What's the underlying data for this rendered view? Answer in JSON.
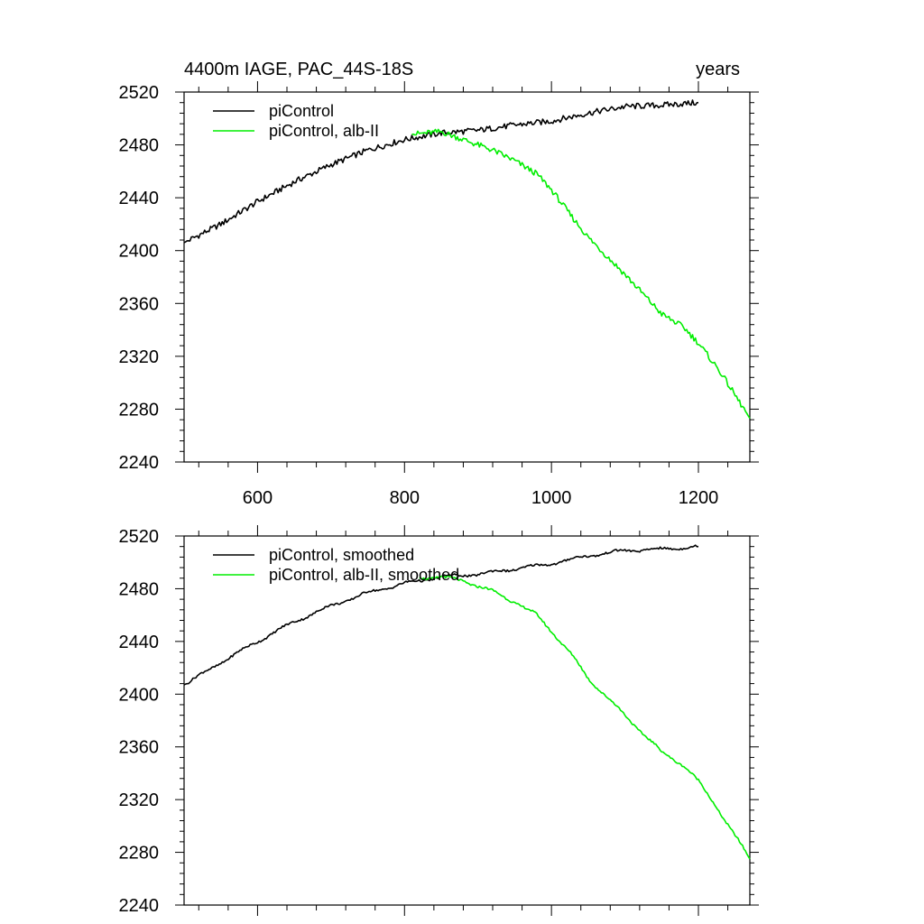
{
  "header": {
    "title_left": "4400m IAGE, PAC_44S-18S",
    "title_right": "years"
  },
  "chart_data": [
    {
      "type": "line",
      "title": "4400m IAGE, PAC_44S-18S",
      "xlabel": "years",
      "ylabel": "",
      "xlim": [
        500,
        1270
      ],
      "ylim": [
        2240,
        2520
      ],
      "xticks": [
        600,
        800,
        1000,
        1200
      ],
      "xtick_labels": [
        "600",
        "800",
        "1000",
        "1200"
      ],
      "yticks": [
        2240,
        2280,
        2320,
        2360,
        2400,
        2440,
        2480,
        2520
      ],
      "ytick_labels": [
        "2240",
        "2280",
        "2320",
        "2360",
        "2400",
        "2440",
        "2480",
        "2520"
      ],
      "legend": "top-left",
      "series": [
        {
          "name": "piControl",
          "color": "#000000",
          "x": [
            500,
            550,
            600,
            650,
            700,
            750,
            800,
            850,
            900,
            950,
            1000,
            1050,
            1100,
            1150,
            1200
          ],
          "y": [
            2406,
            2420,
            2437,
            2452,
            2465,
            2476,
            2484,
            2489,
            2491,
            2495,
            2498,
            2504,
            2509,
            2510,
            2512
          ]
        },
        {
          "name": "piControl, alb-II",
          "color": "#00ee00",
          "x": [
            810,
            850,
            880,
            920,
            950,
            980,
            1000,
            1030,
            1050,
            1100,
            1150,
            1180,
            1200,
            1230,
            1270
          ],
          "y": [
            2488,
            2490,
            2484,
            2476,
            2468,
            2458,
            2446,
            2424,
            2410,
            2382,
            2352,
            2342,
            2330,
            2308,
            2273
          ]
        }
      ]
    },
    {
      "type": "line",
      "title": "",
      "xlabel": "",
      "ylabel": "",
      "xlim": [
        500,
        1270
      ],
      "ylim": [
        2240,
        2520
      ],
      "xticks": [
        600,
        800,
        1000,
        1200
      ],
      "xtick_labels": [],
      "yticks": [
        2240,
        2280,
        2320,
        2360,
        2400,
        2440,
        2480,
        2520
      ],
      "ytick_labels": [
        "2240",
        "2280",
        "2320",
        "2360",
        "2400",
        "2440",
        "2480",
        "2520"
      ],
      "legend": "top-left",
      "series": [
        {
          "name": "piControl, smoothed",
          "color": "#000000",
          "x": [
            500,
            550,
            600,
            650,
            700,
            750,
            800,
            850,
            900,
            950,
            1000,
            1050,
            1100,
            1150,
            1200
          ],
          "y": [
            2407,
            2424,
            2440,
            2455,
            2467,
            2477,
            2484,
            2489,
            2491,
            2495,
            2499,
            2505,
            2509,
            2510,
            2512
          ]
        },
        {
          "name": "piControl, alb-II, smoothed",
          "color": "#00ee00",
          "x": [
            820,
            850,
            880,
            920,
            950,
            980,
            1000,
            1030,
            1050,
            1100,
            1150,
            1180,
            1200,
            1230,
            1270
          ],
          "y": [
            2488,
            2489,
            2486,
            2478,
            2470,
            2460,
            2448,
            2428,
            2412,
            2384,
            2356,
            2346,
            2334,
            2310,
            2275
          ]
        }
      ]
    }
  ]
}
